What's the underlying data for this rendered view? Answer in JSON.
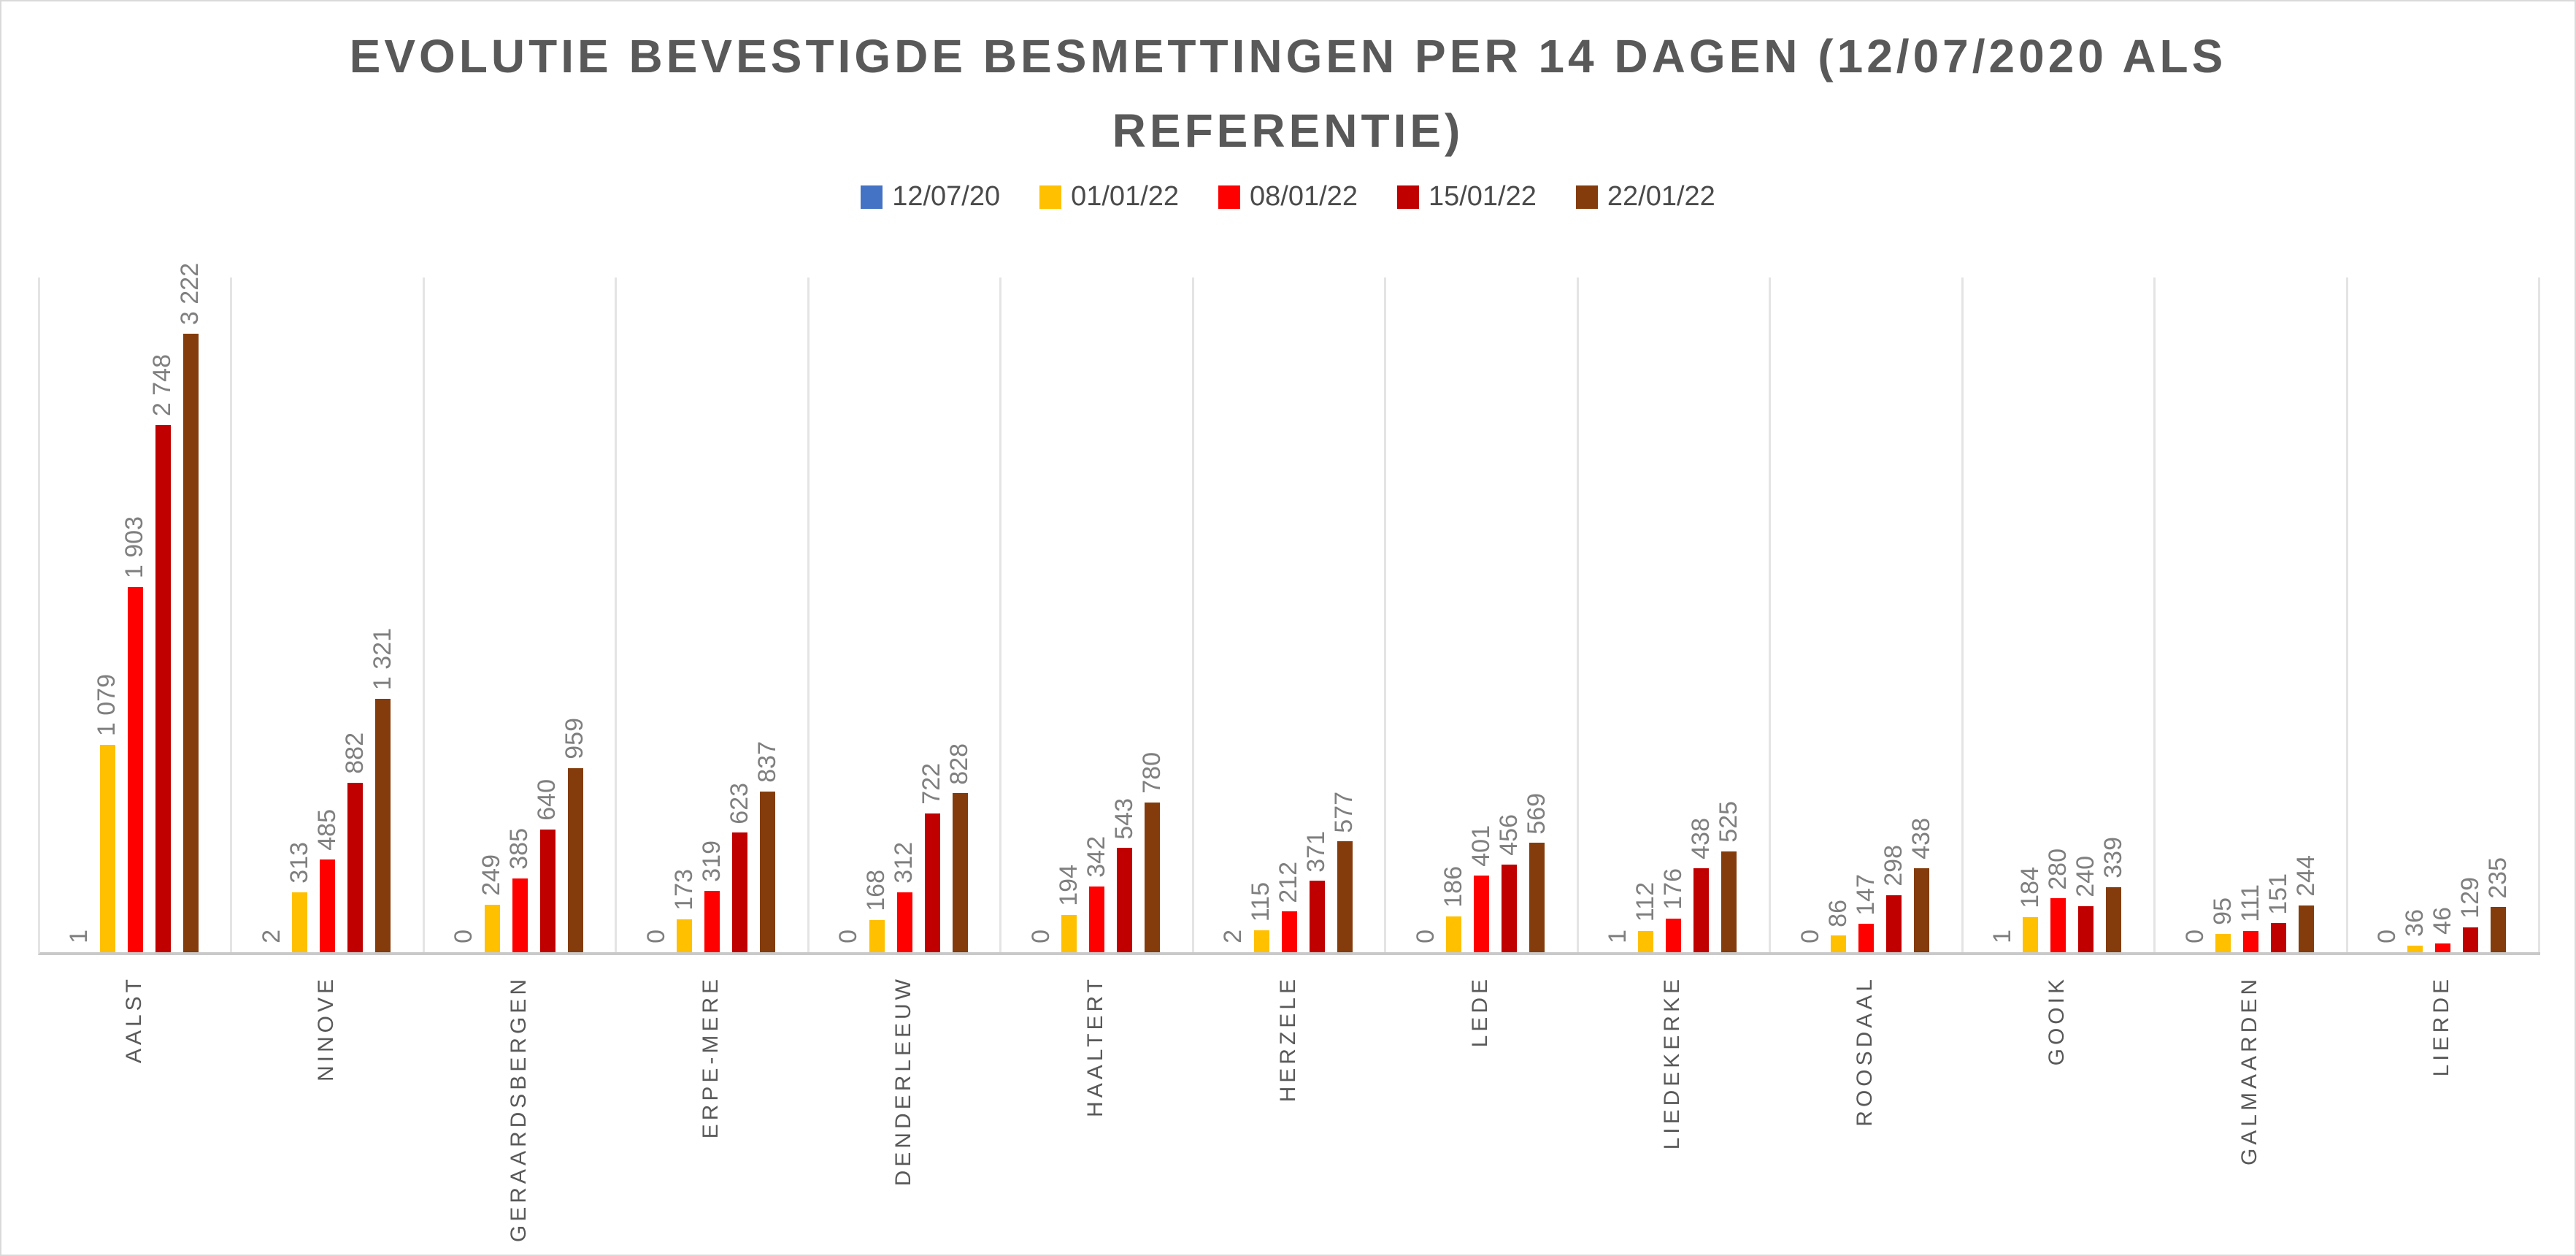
{
  "title": "EVOLUTIE BEVESTIGDE BESMETTINGEN PER 14 DAGEN (12/07/2020 ALS REFERENTIE)",
  "chart_data": {
    "type": "bar",
    "title": "EVOLUTIE BEVESTIGDE BESMETTINGEN PER 14 DAGEN (12/07/2020 ALS REFERENTIE)",
    "categories": [
      "AALST",
      "NINOVE",
      "GERAARDSBERGEN",
      "ERPE-MERE",
      "DENDERLEEUW",
      "HAALTERT",
      "HERZELE",
      "LEDE",
      "LIEDEKERKE",
      "ROOSDAAL",
      "GOOIK",
      "GALMAARDEN",
      "LIERDE"
    ],
    "series": [
      {
        "name": "12/07/20",
        "color": "#4472C4",
        "values": [
          1,
          2,
          0,
          0,
          0,
          0,
          2,
          0,
          1,
          0,
          1,
          0,
          0
        ]
      },
      {
        "name": "01/01/22",
        "color": "#FFC000",
        "values": [
          1079,
          313,
          249,
          173,
          168,
          194,
          115,
          186,
          112,
          86,
          184,
          95,
          36
        ]
      },
      {
        "name": "08/01/22",
        "color": "#FF0000",
        "values": [
          1903,
          485,
          385,
          319,
          312,
          342,
          212,
          401,
          176,
          147,
          280,
          111,
          46
        ]
      },
      {
        "name": "15/01/22",
        "color": "#C00000",
        "values": [
          2748,
          882,
          640,
          623,
          722,
          543,
          371,
          456,
          438,
          298,
          240,
          151,
          129
        ]
      },
      {
        "name": "22/01/22",
        "color": "#843C0C",
        "values": [
          3222,
          1321,
          959,
          837,
          828,
          780,
          577,
          569,
          525,
          438,
          339,
          244,
          235
        ]
      }
    ],
    "xlabel": "",
    "ylabel": "",
    "ylim": [
      0,
      3500
    ],
    "y_axis_visible": false,
    "grid": "vertical category separators only",
    "grid_color": "#E4E4E4",
    "baseline_color": "#C9C9C9",
    "legend_position": "top",
    "data_labels": "each bar labeled, rotated 90deg, thousands separated by space",
    "data_label_color": "#7F7F7F",
    "category_label_color": "#595959",
    "title_color": "#595959"
  }
}
